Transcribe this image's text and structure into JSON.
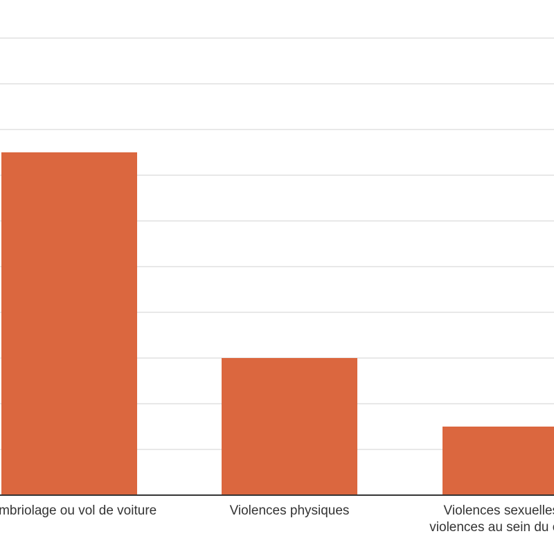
{
  "chart_data": {
    "type": "bar",
    "categories": [
      [
        "Cambriolage ou vol de voiture"
      ],
      [
        "Violences physiques"
      ],
      [
        "Violences sexuelles ou",
        "violences au sein du couple"
      ]
    ],
    "values": [
      7.5,
      3.0,
      1.5
    ],
    "ylim": [
      0,
      10
    ],
    "grid": true,
    "legend": "none",
    "title": "",
    "xlabel": "",
    "ylabel": "",
    "colors": {
      "bar": "#db673f",
      "grid": "#d9d9d9",
      "axis": "#333333",
      "label": "#333333"
    }
  }
}
